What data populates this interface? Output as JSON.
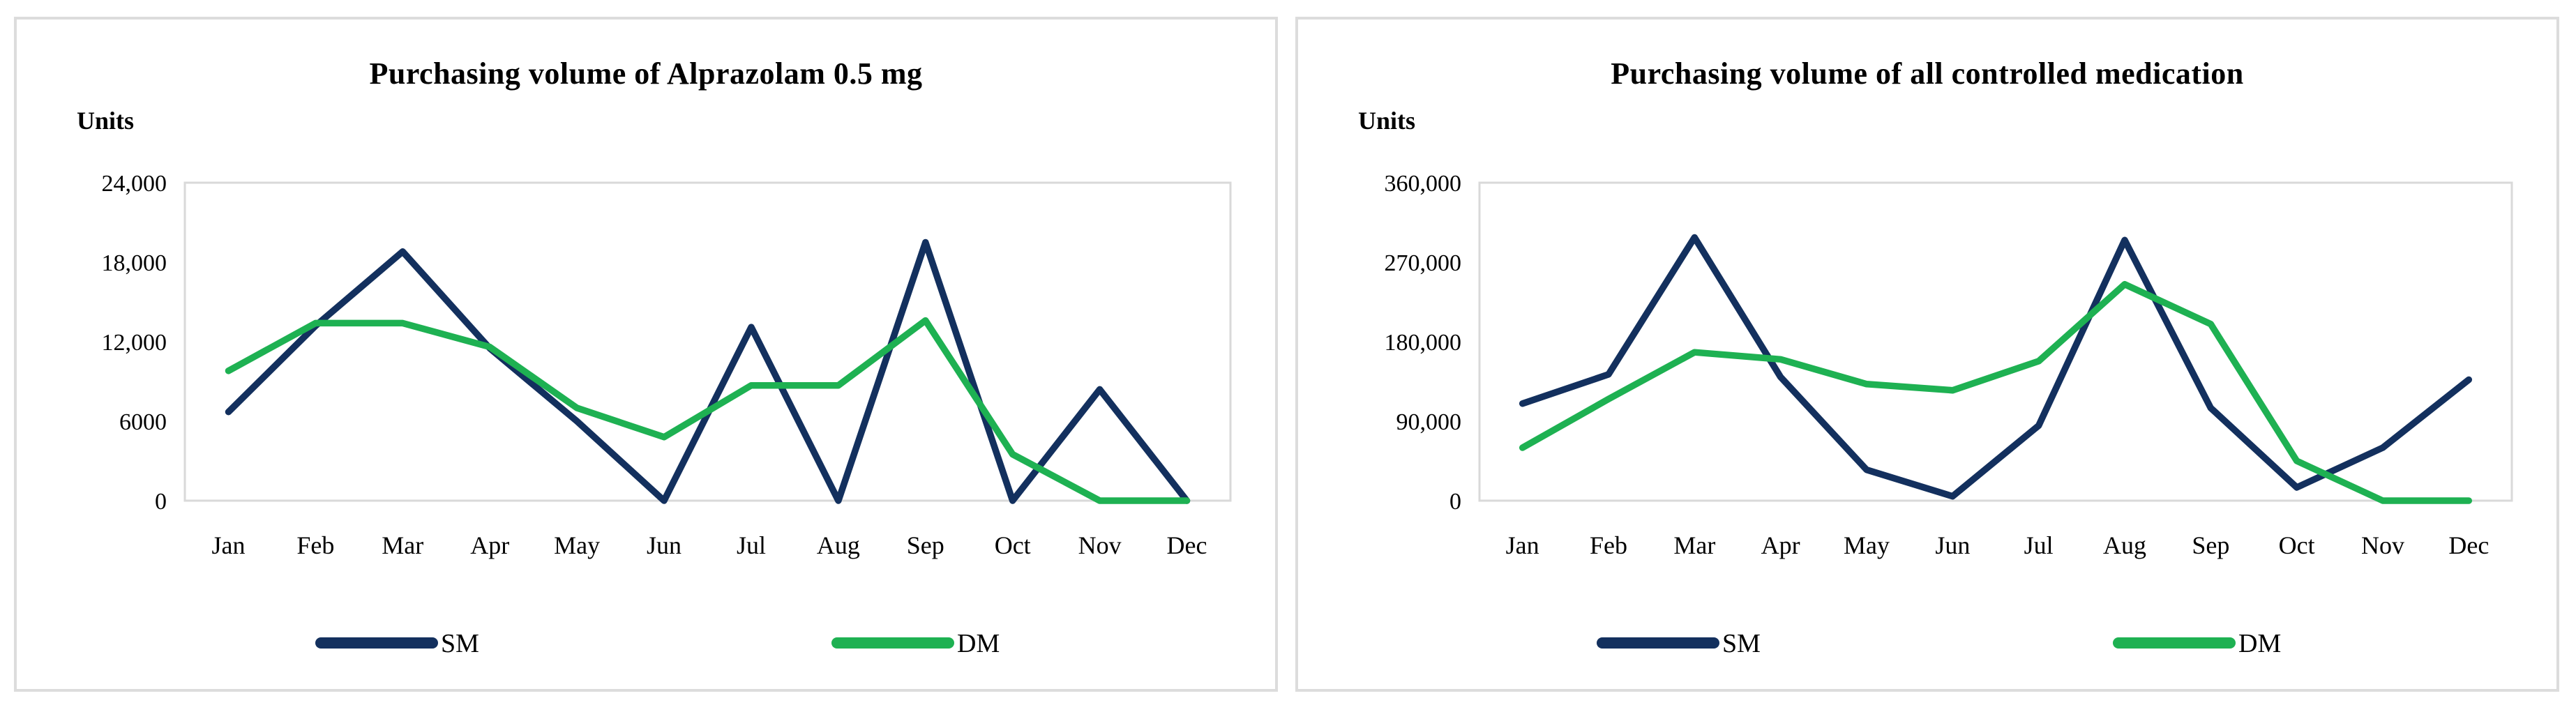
{
  "frame_color": "#d9d9d9",
  "text_color": "#000000",
  "chart_data": [
    {
      "type": "line",
      "title": "Purchasing volume of Alprazolam 0.5 mg",
      "ylabel": "Units",
      "xlabel": "",
      "categories": [
        "Jan",
        "Feb",
        "Mar",
        "Apr",
        "May",
        "Jun",
        "Jul",
        "Aug",
        "Sep",
        "Oct",
        "Nov",
        "Dec"
      ],
      "ylim": [
        0,
        24000
      ],
      "ytick_values": [
        24000,
        18000,
        12000,
        6000,
        0
      ],
      "ytick_labels": [
        "24,000",
        "18,000",
        "12,000",
        "6000",
        "0"
      ],
      "grid": false,
      "legend_position": "bottom",
      "series": [
        {
          "name": "SM",
          "color": "#13305e",
          "values": [
            6700,
            13200,
            18800,
            11500,
            6000,
            0,
            13100,
            0,
            19500,
            0,
            8400,
            0
          ]
        },
        {
          "name": "DM",
          "color": "#1eb152",
          "values": [
            9800,
            13400,
            13400,
            11600,
            7000,
            4800,
            8700,
            8700,
            13600,
            3500,
            0,
            0
          ]
        }
      ]
    },
    {
      "type": "line",
      "title": "Purchasing volume of all controlled medication",
      "ylabel": "Units",
      "xlabel": "",
      "categories": [
        "Jan",
        "Feb",
        "Mar",
        "Apr",
        "May",
        "Jun",
        "Jul",
        "Aug",
        "Sep",
        "Oct",
        "Nov",
        "Dec"
      ],
      "ylim": [
        0,
        360000
      ],
      "ytick_values": [
        360000,
        270000,
        180000,
        90000,
        0
      ],
      "ytick_labels": [
        "360,000",
        "270,000",
        "180,000",
        "90,000",
        "0"
      ],
      "grid": false,
      "legend_position": "bottom",
      "series": [
        {
          "name": "SM",
          "color": "#13305e",
          "values": [
            110000,
            143000,
            298000,
            140000,
            35000,
            5000,
            85000,
            295000,
            105000,
            15000,
            60000,
            137000
          ]
        },
        {
          "name": "DM",
          "color": "#1eb152",
          "values": [
            60000,
            115000,
            168000,
            160000,
            132000,
            125000,
            158000,
            245000,
            200000,
            45000,
            0,
            0
          ]
        }
      ]
    }
  ]
}
